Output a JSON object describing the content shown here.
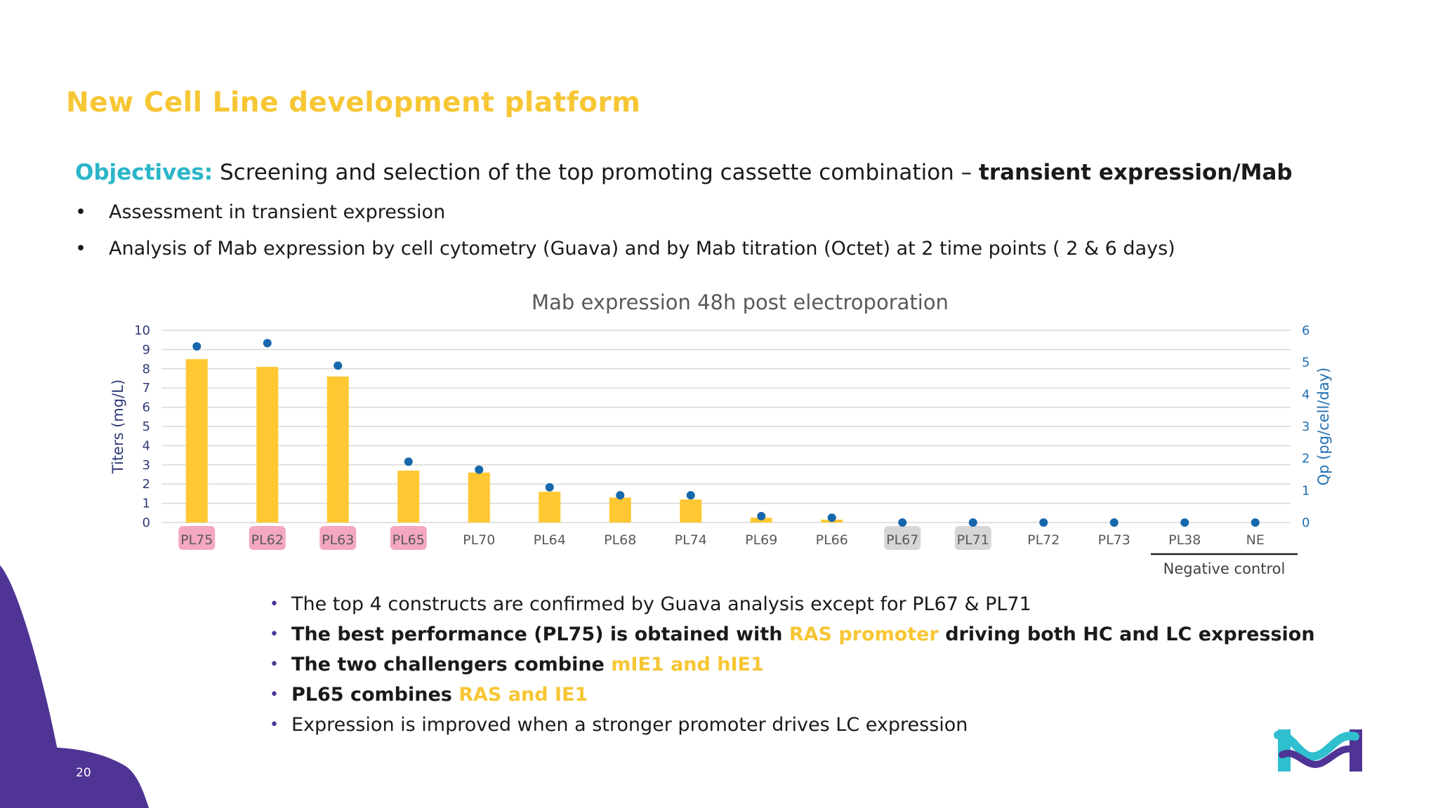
{
  "slide": {
    "title": "New Cell Line development platform",
    "objectives": {
      "label": "Objectives:",
      "text": "Screening and selection of the top promoting cassette combination – ",
      "bold": "transient expression/Mab"
    },
    "intro_bullets": [
      "Assessment in transient expression",
      "Analysis of Mab expression by cell cytometry (Guava) and by Mab titration (Octet) at 2 time points ( 2 & 6 days)"
    ],
    "findings": [
      {
        "parts": [
          {
            "t": "The top 4 constructs are confirmed by Guava analysis except for PL67 & PL71",
            "s": "n"
          }
        ]
      },
      {
        "parts": [
          {
            "t": "The best performance (PL75) is obtained with ",
            "s": "b"
          },
          {
            "t": "RAS promoter",
            "s": "y"
          },
          {
            "t": " driving both HC and LC expression",
            "s": "b"
          }
        ]
      },
      {
        "parts": [
          {
            "t": "The two challengers combine ",
            "s": "b"
          },
          {
            "t": "mIE1 and hIE1",
            "s": "y"
          }
        ]
      },
      {
        "parts": [
          {
            "t": "PL65 combines ",
            "s": "b"
          },
          {
            "t": "RAS and IE1",
            "s": "y"
          }
        ]
      },
      {
        "parts": [
          {
            "t": "Expression is improved when a stronger promoter drives LC expression",
            "s": "n"
          }
        ]
      }
    ],
    "bullet_char": "•",
    "page_number": "20"
  },
  "chart_data": {
    "type": "bar",
    "title": "Mab expression 48h post electroporation",
    "categories": [
      "PL75",
      "PL62",
      "PL63",
      "PL65",
      "PL70",
      "PL64",
      "PL68",
      "PL74",
      "PL69",
      "PL66",
      "PL67",
      "PL71",
      "PL72",
      "PL73",
      "PL38",
      "NE"
    ],
    "series": [
      {
        "axis": "left",
        "mark": "bar",
        "color": "#ffc832",
        "values": [
          8.5,
          8.1,
          7.6,
          2.7,
          2.6,
          1.6,
          1.3,
          1.2,
          0.25,
          0.15,
          0,
          0,
          0,
          0,
          0,
          0
        ]
      },
      {
        "axis": "right",
        "mark": "dot",
        "color": "#1767ad",
        "values": [
          5.5,
          5.6,
          4.9,
          1.9,
          1.65,
          1.1,
          0.85,
          0.85,
          0.2,
          0.15,
          0,
          0,
          0,
          0,
          0,
          0
        ]
      }
    ],
    "ylabel": "Titers (mg/L)",
    "ylabel_right": "Qp (pg/cell/day)",
    "ylim": [
      0,
      10
    ],
    "ylim_right": [
      0,
      6
    ],
    "yticks": [
      0,
      1,
      2,
      3,
      4,
      5,
      6,
      7,
      8,
      9,
      10
    ],
    "yticks_right": [
      0,
      1,
      2,
      3,
      4,
      5,
      6
    ],
    "highlight_pink": [
      "PL75",
      "PL62",
      "PL63",
      "PL65"
    ],
    "highlight_grey": [
      "PL67",
      "PL71"
    ],
    "highlight_colors": {
      "pink": "#f4a7c0",
      "grey": "#d6d6d6"
    },
    "negative_control_label": "Negative control",
    "negative_control_categories": [
      "PL38",
      "NE"
    ],
    "grid": true
  }
}
